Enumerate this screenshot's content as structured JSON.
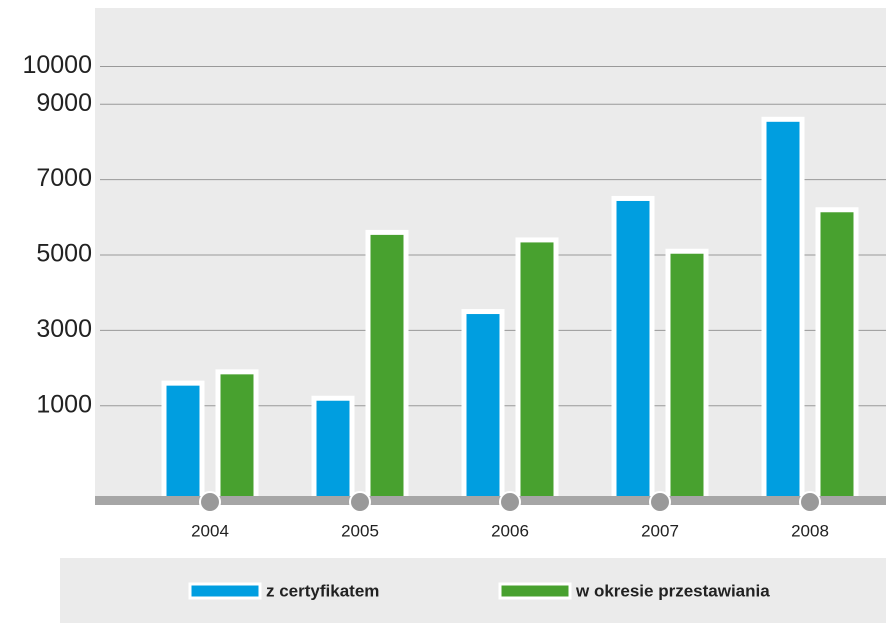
{
  "chart_data": {
    "type": "bar",
    "categories": [
      "2004",
      "2005",
      "2006",
      "2007",
      "2008"
    ],
    "series": [
      {
        "name": "z certyfikatem",
        "color": "#009ee0",
        "values": [
          1600,
          1200,
          3500,
          6500,
          8600
        ]
      },
      {
        "name": "w okresie przestawiania",
        "color": "#48a12f",
        "values": [
          1900,
          5600,
          5400,
          5100,
          6200
        ]
      }
    ],
    "ylim": [
      -1500,
      11500
    ],
    "yticks": [
      1000,
      3000,
      5000,
      7000,
      9000,
      10000
    ],
    "grid": true
  }
}
